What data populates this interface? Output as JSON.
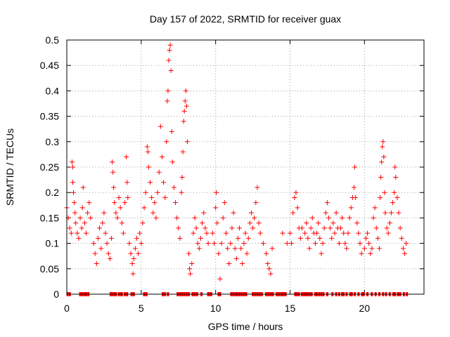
{
  "chart_data": {
    "type": "scatter",
    "title": "Day 157 of 2022, SRMTID for receiver guax",
    "xlabel": "GPS time / hours",
    "ylabel": "SRMTID / TECUs",
    "xlim": [
      0,
      24
    ],
    "ylim": [
      0,
      0.5
    ],
    "xticks": [
      0,
      5,
      10,
      15,
      20
    ],
    "xtick_labels": [
      "0",
      "5",
      "10",
      "15",
      "20"
    ],
    "yticks": [
      0,
      0.05,
      0.1,
      0.15,
      0.2,
      0.25,
      0.3,
      0.35,
      0.4,
      0.45,
      0.5
    ],
    "ytick_labels": [
      "0",
      "0.05",
      "0.1",
      "0.15",
      "0.2",
      "0.25",
      "0.3",
      "0.35",
      "0.4",
      "0.45",
      "0.5"
    ],
    "grid": true,
    "marker": "+",
    "color": "#ff0000",
    "series": [
      {
        "name": "SRMTID",
        "points": [
          [
            0.0,
            0.17
          ],
          [
            0.1,
            0.15
          ],
          [
            0.2,
            0.13
          ],
          [
            0.3,
            0.12
          ],
          [
            0.35,
            0.26
          ],
          [
            0.4,
            0.25
          ],
          [
            0.4,
            0.22
          ],
          [
            0.45,
            0.2
          ],
          [
            0.5,
            0.18
          ],
          [
            0.55,
            0.16
          ],
          [
            0.6,
            0.14
          ],
          [
            0.7,
            0.12
          ],
          [
            0.8,
            0.11
          ],
          [
            0.9,
            0.15
          ],
          [
            1.0,
            0.13
          ],
          [
            1.05,
            0.17
          ],
          [
            1.1,
            0.21
          ],
          [
            1.2,
            0.14
          ],
          [
            1.3,
            0.12
          ],
          [
            1.4,
            0.16
          ],
          [
            1.5,
            0.18
          ],
          [
            1.6,
            0.15
          ],
          [
            1.8,
            0.1
          ],
          [
            1.9,
            0.08
          ],
          [
            2.0,
            0.06
          ],
          [
            2.1,
            0.11
          ],
          [
            2.2,
            0.13
          ],
          [
            2.3,
            0.09
          ],
          [
            2.4,
            0.14
          ],
          [
            2.5,
            0.16
          ],
          [
            2.6,
            0.12
          ],
          [
            2.7,
            0.1
          ],
          [
            2.8,
            0.08
          ],
          [
            2.9,
            0.07
          ],
          [
            3.0,
            0.11
          ],
          [
            3.05,
            0.26
          ],
          [
            3.1,
            0.24
          ],
          [
            3.15,
            0.21
          ],
          [
            3.2,
            0.18
          ],
          [
            3.3,
            0.16
          ],
          [
            3.4,
            0.15
          ],
          [
            3.5,
            0.19
          ],
          [
            3.6,
            0.17
          ],
          [
            3.7,
            0.14
          ],
          [
            3.8,
            0.12
          ],
          [
            3.9,
            0.18
          ],
          [
            4.0,
            0.27
          ],
          [
            4.05,
            0.22
          ],
          [
            4.1,
            0.19
          ],
          [
            4.2,
            0.1
          ],
          [
            4.3,
            0.08
          ],
          [
            4.4,
            0.06
          ],
          [
            4.45,
            0.04
          ],
          [
            4.5,
            0.07
          ],
          [
            4.6,
            0.09
          ],
          [
            4.7,
            0.11
          ],
          [
            4.8,
            0.08
          ],
          [
            4.9,
            0.12
          ],
          [
            5.0,
            0.1
          ],
          [
            5.1,
            0.14
          ],
          [
            5.2,
            0.17
          ],
          [
            5.3,
            0.2
          ],
          [
            5.4,
            0.29
          ],
          [
            5.45,
            0.28
          ],
          [
            5.5,
            0.25
          ],
          [
            5.6,
            0.22
          ],
          [
            5.7,
            0.19
          ],
          [
            5.8,
            0.16
          ],
          [
            5.9,
            0.18
          ],
          [
            6.0,
            0.15
          ],
          [
            6.1,
            0.2
          ],
          [
            6.2,
            0.24
          ],
          [
            6.3,
            0.33
          ],
          [
            6.4,
            0.27
          ],
          [
            6.5,
            0.22
          ],
          [
            6.6,
            0.19
          ],
          [
            6.7,
            0.3
          ],
          [
            6.75,
            0.38
          ],
          [
            6.8,
            0.4
          ],
          [
            6.85,
            0.46
          ],
          [
            6.9,
            0.48
          ],
          [
            6.95,
            0.49
          ],
          [
            7.0,
            0.44
          ],
          [
            7.05,
            0.32
          ],
          [
            7.1,
            0.26
          ],
          [
            7.2,
            0.21
          ],
          [
            7.3,
            0.18
          ],
          [
            7.4,
            0.15
          ],
          [
            7.5,
            0.13
          ],
          [
            7.6,
            0.11
          ],
          [
            7.7,
            0.2
          ],
          [
            7.75,
            0.23
          ],
          [
            7.8,
            0.28
          ],
          [
            7.85,
            0.34
          ],
          [
            7.9,
            0.36
          ],
          [
            7.95,
            0.38
          ],
          [
            8.0,
            0.4
          ],
          [
            8.05,
            0.37
          ],
          [
            8.1,
            0.3
          ],
          [
            8.2,
            0.08
          ],
          [
            8.25,
            0.05
          ],
          [
            8.3,
            0.04
          ],
          [
            8.4,
            0.06
          ],
          [
            8.5,
            0.12
          ],
          [
            8.6,
            0.15
          ],
          [
            8.7,
            0.13
          ],
          [
            8.8,
            0.1
          ],
          [
            8.9,
            0.09
          ],
          [
            9.0,
            0.11
          ],
          [
            9.1,
            0.14
          ],
          [
            9.2,
            0.16
          ],
          [
            9.3,
            0.13
          ],
          [
            9.4,
            0.12
          ],
          [
            9.5,
            0.1
          ],
          [
            9.8,
            0.12
          ],
          [
            9.9,
            0.1
          ],
          [
            10.0,
            0.17
          ],
          [
            10.05,
            0.2
          ],
          [
            10.1,
            0.14
          ],
          [
            10.2,
            0.08
          ],
          [
            10.3,
            0.03
          ],
          [
            10.4,
            0.1
          ],
          [
            10.5,
            0.15
          ],
          [
            10.6,
            0.18
          ],
          [
            10.7,
            0.12
          ],
          [
            10.8,
            0.09
          ],
          [
            10.9,
            0.06
          ],
          [
            11.0,
            0.1
          ],
          [
            11.1,
            0.13
          ],
          [
            11.2,
            0.16
          ],
          [
            11.3,
            0.09
          ],
          [
            11.4,
            0.07
          ],
          [
            11.5,
            0.11
          ],
          [
            11.6,
            0.13
          ],
          [
            11.7,
            0.09
          ],
          [
            11.8,
            0.06
          ],
          [
            11.9,
            0.1
          ],
          [
            12.0,
            0.12
          ],
          [
            12.1,
            0.08
          ],
          [
            12.2,
            0.11
          ],
          [
            12.3,
            0.14
          ],
          [
            12.4,
            0.16
          ],
          [
            12.5,
            0.13
          ],
          [
            12.6,
            0.15
          ],
          [
            12.7,
            0.18
          ],
          [
            12.8,
            0.21
          ],
          [
            12.9,
            0.14
          ],
          [
            13.0,
            0.12
          ],
          [
            13.2,
            0.1
          ],
          [
            13.4,
            0.08
          ],
          [
            13.5,
            0.06
          ],
          [
            13.6,
            0.05
          ],
          [
            13.7,
            0.04
          ],
          [
            13.8,
            0.09
          ],
          [
            14.5,
            0.12
          ],
          [
            14.8,
            0.1
          ],
          [
            15.0,
            0.12
          ],
          [
            15.1,
            0.1
          ],
          [
            15.2,
            0.16
          ],
          [
            15.3,
            0.19
          ],
          [
            15.4,
            0.2
          ],
          [
            15.5,
            0.17
          ],
          [
            15.6,
            0.13
          ],
          [
            15.7,
            0.11
          ],
          [
            15.8,
            0.13
          ],
          [
            16.0,
            0.12
          ],
          [
            16.1,
            0.14
          ],
          [
            16.2,
            0.11
          ],
          [
            16.3,
            0.09
          ],
          [
            16.4,
            0.13
          ],
          [
            16.5,
            0.15
          ],
          [
            16.6,
            0.12
          ],
          [
            16.7,
            0.1
          ],
          [
            16.8,
            0.12
          ],
          [
            16.9,
            0.14
          ],
          [
            17.0,
            0.11
          ],
          [
            17.1,
            0.08
          ],
          [
            17.2,
            0.1
          ],
          [
            17.3,
            0.13
          ],
          [
            17.4,
            0.16
          ],
          [
            17.5,
            0.18
          ],
          [
            17.6,
            0.15
          ],
          [
            17.7,
            0.13
          ],
          [
            17.8,
            0.11
          ],
          [
            17.9,
            0.14
          ],
          [
            18.0,
            0.12
          ],
          [
            18.1,
            0.16
          ],
          [
            18.2,
            0.13
          ],
          [
            18.3,
            0.1
          ],
          [
            18.4,
            0.13
          ],
          [
            18.5,
            0.15
          ],
          [
            18.6,
            0.12
          ],
          [
            18.7,
            0.1
          ],
          [
            18.8,
            0.09
          ],
          [
            18.9,
            0.12
          ],
          [
            19.0,
            0.15
          ],
          [
            19.1,
            0.17
          ],
          [
            19.2,
            0.19
          ],
          [
            19.3,
            0.21
          ],
          [
            19.35,
            0.25
          ],
          [
            19.4,
            0.19
          ],
          [
            19.5,
            0.14
          ],
          [
            19.6,
            0.12
          ],
          [
            19.7,
            0.1
          ],
          [
            19.8,
            0.08
          ],
          [
            20.0,
            0.09
          ],
          [
            20.1,
            0.11
          ],
          [
            20.2,
            0.12
          ],
          [
            20.3,
            0.1
          ],
          [
            20.4,
            0.08
          ],
          [
            20.5,
            0.09
          ],
          [
            20.6,
            0.15
          ],
          [
            20.7,
            0.17
          ],
          [
            20.8,
            0.13
          ],
          [
            20.9,
            0.11
          ],
          [
            21.0,
            0.09
          ],
          [
            21.05,
            0.19
          ],
          [
            21.1,
            0.23
          ],
          [
            21.15,
            0.26
          ],
          [
            21.2,
            0.29
          ],
          [
            21.25,
            0.3
          ],
          [
            21.3,
            0.27
          ],
          [
            21.35,
            0.2
          ],
          [
            21.4,
            0.16
          ],
          [
            21.5,
            0.13
          ],
          [
            21.6,
            0.12
          ],
          [
            21.7,
            0.14
          ],
          [
            21.8,
            0.16
          ],
          [
            21.9,
            0.18
          ],
          [
            22.0,
            0.2
          ],
          [
            22.05,
            0.25
          ],
          [
            22.1,
            0.23
          ],
          [
            22.2,
            0.19
          ],
          [
            22.3,
            0.16
          ],
          [
            22.4,
            0.13
          ],
          [
            22.5,
            0.11
          ],
          [
            22.6,
            0.09
          ],
          [
            22.7,
            0.08
          ],
          [
            22.8,
            0.1
          ]
        ]
      }
    ],
    "zero_markers_x": [
      0.05,
      0.2,
      0.9,
      1.05,
      1.2,
      1.3,
      1.45,
      2.95,
      3.05,
      3.2,
      3.3,
      3.5,
      3.65,
      3.7,
      3.9,
      4.05,
      4.35,
      4.5,
      5.2,
      5.35,
      6.45,
      6.6,
      6.8,
      7.45,
      7.6,
      7.75,
      7.9,
      8.05,
      8.2,
      8.45,
      8.6,
      8.75,
      9.05,
      9.5,
      9.55,
      9.7,
      10.2,
      10.3,
      11.05,
      11.2,
      11.35,
      11.45,
      11.6,
      11.75,
      11.9,
      12.05,
      12.5,
      12.65,
      12.8,
      12.95,
      13.1,
      13.4,
      13.55,
      13.7,
      13.85,
      14.1,
      14.25,
      14.4,
      14.5,
      14.55,
      14.7,
      15.35,
      15.45,
      15.6,
      15.8,
      15.95,
      16.05,
      16.15,
      16.3,
      16.45,
      16.7,
      16.8,
      16.95,
      17.1,
      17.25,
      17.5,
      17.85,
      18.1,
      18.3,
      18.5,
      18.6,
      18.8,
      19.05,
      19.15,
      19.35,
      19.6,
      19.85,
      19.95,
      20.2,
      20.5,
      20.75,
      21.0,
      21.25,
      21.45,
      21.7,
      21.95,
      22.05,
      22.25,
      22.4,
      22.65,
      22.85
    ]
  }
}
